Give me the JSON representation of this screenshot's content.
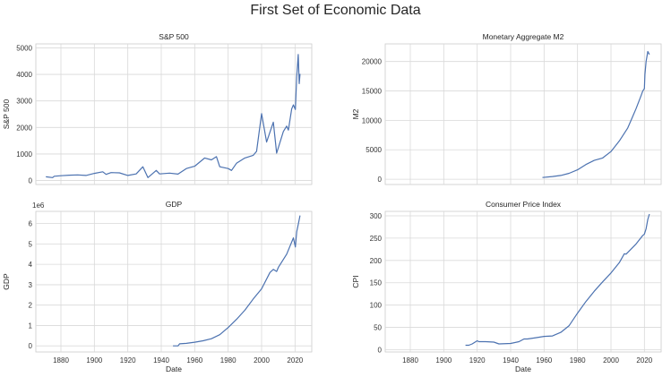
{
  "figure_title": "First Set of Economic Data",
  "line_color": "#4c72b0",
  "chart_data": [
    {
      "id": "sp500",
      "type": "line",
      "title": "S&P 500",
      "xlabel": "",
      "ylabel": "S&P 500",
      "xlim": [
        1865,
        2030
      ],
      "ylim": [
        -150,
        5150
      ],
      "xticks": [
        1880,
        1900,
        1920,
        1940,
        1960,
        1980,
        2000,
        2020
      ],
      "yticks": [
        0,
        1000,
        2000,
        3000,
        4000,
        5000
      ],
      "ytick_labels": [
        "0",
        "1000",
        "2000",
        "3000",
        "4000",
        "5000"
      ],
      "show_xtick_labels": false,
      "multiplier": "",
      "series": [
        {
          "x": [
            1871,
            1875,
            1876,
            1880,
            1885,
            1890,
            1895,
            1900,
            1905,
            1907,
            1910,
            1915,
            1920,
            1925,
            1929,
            1932,
            1937,
            1939,
            1945,
            1950,
            1955,
            1960,
            1966,
            1970,
            1973,
            1975,
            1980,
            1982,
            1985,
            1990,
            1995,
            1997,
            2000,
            2003,
            2007,
            2009,
            2013,
            2015,
            2016,
            2018,
            2019,
            2020.2,
            2021,
            2021.9,
            2022.5,
            2023
          ],
          "y": [
            140,
            110,
            160,
            180,
            200,
            210,
            190,
            270,
            330,
            230,
            300,
            290,
            190,
            250,
            520,
            110,
            380,
            250,
            280,
            240,
            450,
            540,
            850,
            780,
            900,
            520,
            450,
            380,
            650,
            850,
            950,
            1100,
            2520,
            1450,
            2200,
            1030,
            1850,
            2050,
            1900,
            2700,
            2850,
            2680,
            3900,
            4750,
            3650,
            4020
          ]
        }
      ]
    },
    {
      "id": "m2",
      "type": "line",
      "title": "Monetary Aggregate M2",
      "xlabel": "",
      "ylabel": "M2",
      "xlim": [
        1865,
        2030
      ],
      "ylim": [
        -900,
        23000
      ],
      "xticks": [
        1880,
        1900,
        1920,
        1940,
        1960,
        1980,
        2000,
        2020
      ],
      "yticks": [
        0,
        5000,
        10000,
        15000,
        20000
      ],
      "ytick_labels": [
        "0",
        "5000",
        "10000",
        "15000",
        "20000"
      ],
      "show_xtick_labels": false,
      "multiplier": "",
      "series": [
        {
          "x": [
            1959,
            1965,
            1970,
            1975,
            1980,
            1985,
            1990,
            1995,
            2000,
            2005,
            2008,
            2010,
            2012,
            2015,
            2018,
            2019,
            2020,
            2020.3,
            2021,
            2022,
            2023
          ],
          "y": [
            290,
            460,
            630,
            1000,
            1600,
            2500,
            3200,
            3600,
            4700,
            6500,
            7800,
            8700,
            10000,
            12000,
            14200,
            15000,
            15400,
            17800,
            20000,
            21700,
            21200
          ]
        }
      ]
    },
    {
      "id": "gdp",
      "type": "line",
      "title": "GDP",
      "xlabel": "Date",
      "ylabel": "GDP",
      "xlim": [
        1865,
        2030
      ],
      "ylim": [
        -0.3,
        6.6
      ],
      "xticks": [
        1880,
        1900,
        1920,
        1940,
        1960,
        1980,
        2000,
        2020
      ],
      "yticks": [
        0,
        1,
        2,
        3,
        4,
        5,
        6
      ],
      "ytick_labels": [
        "0",
        "1",
        "2",
        "3",
        "4",
        "5",
        "6"
      ],
      "show_xtick_labels": true,
      "multiplier": "1e6",
      "series": [
        {
          "x": [
            1947,
            1950,
            1951,
            1955,
            1960,
            1965,
            1970,
            1975,
            1980,
            1985,
            1990,
            1995,
            2000,
            2005,
            2007,
            2009,
            2010,
            2015,
            2019,
            2020.2,
            2020.6,
            2021,
            2022,
            2023
          ],
          "y": [
            0.0,
            0.0,
            0.1,
            0.12,
            0.18,
            0.25,
            0.35,
            0.55,
            0.9,
            1.3,
            1.75,
            2.3,
            2.8,
            3.6,
            3.75,
            3.65,
            3.85,
            4.5,
            5.3,
            4.85,
            5.25,
            5.6,
            6.0,
            6.4
          ]
        }
      ]
    },
    {
      "id": "cpi",
      "type": "line",
      "title": "Consumer Price Index",
      "xlabel": "Date",
      "ylabel": "CPI",
      "xlim": [
        1865,
        2030
      ],
      "ylim": [
        -5,
        310
      ],
      "xticks": [
        1880,
        1900,
        1920,
        1940,
        1960,
        1980,
        2000,
        2020
      ],
      "yticks": [
        0,
        50,
        100,
        150,
        200,
        250,
        300
      ],
      "ytick_labels": [
        "0",
        "50",
        "100",
        "150",
        "200",
        "250",
        "300"
      ],
      "show_xtick_labels": true,
      "multiplier": "",
      "series": [
        {
          "x": [
            1913,
            1915,
            1917,
            1920,
            1921,
            1925,
            1930,
            1933,
            1940,
            1945,
            1948,
            1950,
            1955,
            1960,
            1965,
            1970,
            1975,
            1980,
            1985,
            1990,
            1995,
            2000,
            2005,
            2008,
            2009,
            2010,
            2015,
            2019,
            2020,
            2021,
            2022,
            2023
          ],
          "y": [
            10,
            10,
            13,
            20,
            18,
            18,
            17,
            13,
            14,
            18,
            24,
            24,
            27,
            30,
            31,
            39,
            54,
            82,
            108,
            131,
            152,
            172,
            195,
            215,
            214,
            218,
            237,
            256,
            259,
            271,
            292,
            304
          ]
        }
      ]
    }
  ]
}
